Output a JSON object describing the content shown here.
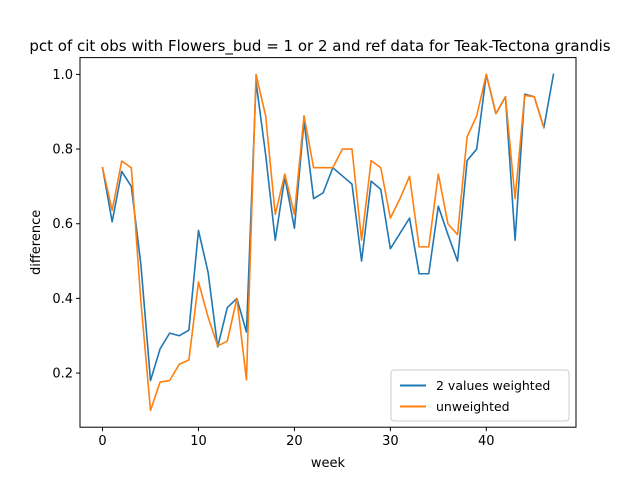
{
  "chart_data": {
    "type": "line",
    "title": "pct of cit obs with Flowers_bud = 1 or 2 and ref data for Teak-Tectona grandis",
    "xlabel": "week",
    "ylabel": "difference",
    "xlim": [
      -2.35,
      49.35
    ],
    "ylim": [
      0.055,
      1.045
    ],
    "xticks": [
      0,
      10,
      20,
      30,
      40
    ],
    "yticks": [
      0.2,
      0.4,
      0.6,
      0.8,
      1.0
    ],
    "xtick_labels": [
      "0",
      "10",
      "20",
      "30",
      "40"
    ],
    "ytick_labels": [
      "0.2",
      "0.4",
      "0.6",
      "0.8",
      "1.0"
    ],
    "grid": false,
    "legend_position": "lower-right",
    "x": [
      0,
      1,
      2,
      3,
      4,
      5,
      6,
      7,
      8,
      9,
      10,
      11,
      12,
      13,
      14,
      15,
      16,
      17,
      18,
      19,
      20,
      21,
      22,
      23,
      24,
      25,
      26,
      27,
      28,
      29,
      30,
      31,
      32,
      33,
      34,
      35,
      36,
      37,
      38,
      39,
      40,
      41,
      42,
      43,
      44,
      45,
      46,
      47
    ],
    "series": [
      {
        "name": "2 values weighted",
        "color": "#1f77b4",
        "values": [
          0.75,
          0.605,
          0.74,
          0.7,
          0.49,
          0.18,
          0.265,
          0.307,
          0.3,
          0.315,
          0.582,
          0.47,
          0.27,
          0.375,
          0.4,
          0.31,
          0.98,
          0.785,
          0.556,
          0.725,
          0.588,
          0.875,
          0.667,
          0.683,
          0.75,
          0.728,
          0.706,
          0.5,
          0.714,
          0.692,
          0.533,
          0.574,
          0.615,
          0.466,
          0.466,
          0.647,
          0.571,
          0.5,
          0.769,
          0.8,
          1.0,
          0.895,
          0.94,
          0.556,
          0.947,
          0.94,
          0.857,
          1.0
        ]
      },
      {
        "name": "unweighted",
        "color": "#ff7f0e",
        "values": [
          0.75,
          0.636,
          0.768,
          0.75,
          0.39,
          0.1,
          0.176,
          0.18,
          0.224,
          0.235,
          0.444,
          0.35,
          0.273,
          0.285,
          0.4,
          0.182,
          1.0,
          0.889,
          0.625,
          0.733,
          0.625,
          0.889,
          0.75,
          0.75,
          0.75,
          0.8,
          0.8,
          0.556,
          0.769,
          0.75,
          0.615,
          0.667,
          0.727,
          0.538,
          0.538,
          0.733,
          0.6,
          0.571,
          0.833,
          0.889,
          1.0,
          0.895,
          0.94,
          0.667,
          0.944,
          0.94,
          0.857,
          null
        ]
      }
    ]
  }
}
